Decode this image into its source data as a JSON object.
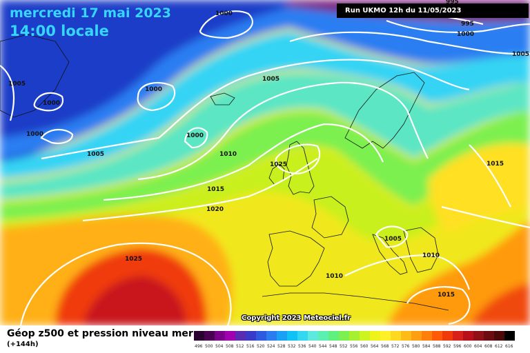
{
  "header": {
    "date": "mercredi 17 mai 2023",
    "time": "14:00 locale",
    "run": "Run UKMO 12h du 11/05/2023"
  },
  "copyright": "Copyright 2023 Meteociel.fr",
  "footer": {
    "title": "Géop z500 et pression niveau mer",
    "subtitle": "(+144h)"
  },
  "scale": {
    "labels": [
      "496",
      "500",
      "504",
      "508",
      "512",
      "516",
      "520",
      "524",
      "528",
      "532",
      "536",
      "540",
      "544",
      "548",
      "552",
      "556",
      "560",
      "564",
      "568",
      "572",
      "576",
      "580",
      "584",
      "588",
      "592",
      "596",
      "600",
      "604",
      "608",
      "612",
      "616"
    ],
    "colors": [
      "#2a0030",
      "#4a0050",
      "#7a008a",
      "#a000b0",
      "#5a2cb0",
      "#3a3ac8",
      "#2e5ae0",
      "#2a7cf0",
      "#1aa0f4",
      "#10c2f6",
      "#33d8f0",
      "#5ee8e0",
      "#5cf0b0",
      "#60f080",
      "#7cf050",
      "#a6f030",
      "#cdf41e",
      "#eef41a",
      "#fff028",
      "#ffd820",
      "#ffbc18",
      "#ff9e10",
      "#ff7e0c",
      "#ff5a08",
      "#f03a0a",
      "#d8201a",
      "#b8101a",
      "#901018",
      "#6a0c10",
      "#4a0808",
      "#000000"
    ]
  },
  "isobar_labels": [
    {
      "text": "1000"
    },
    {
      "text": "995"
    },
    {
      "text": "995"
    },
    {
      "text": "1000"
    },
    {
      "text": "1005"
    },
    {
      "text": "1005"
    },
    {
      "text": "1000"
    },
    {
      "text": "1000"
    },
    {
      "text": "1000"
    },
    {
      "text": "1005"
    },
    {
      "text": "1000"
    },
    {
      "text": "1005"
    },
    {
      "text": "1010"
    },
    {
      "text": "1025"
    },
    {
      "text": "1015"
    },
    {
      "text": "1020"
    },
    {
      "text": "1015"
    },
    {
      "text": "1005"
    },
    {
      "text": "1010"
    },
    {
      "text": "1025"
    },
    {
      "text": "1010"
    },
    {
      "text": "1015"
    }
  ]
}
